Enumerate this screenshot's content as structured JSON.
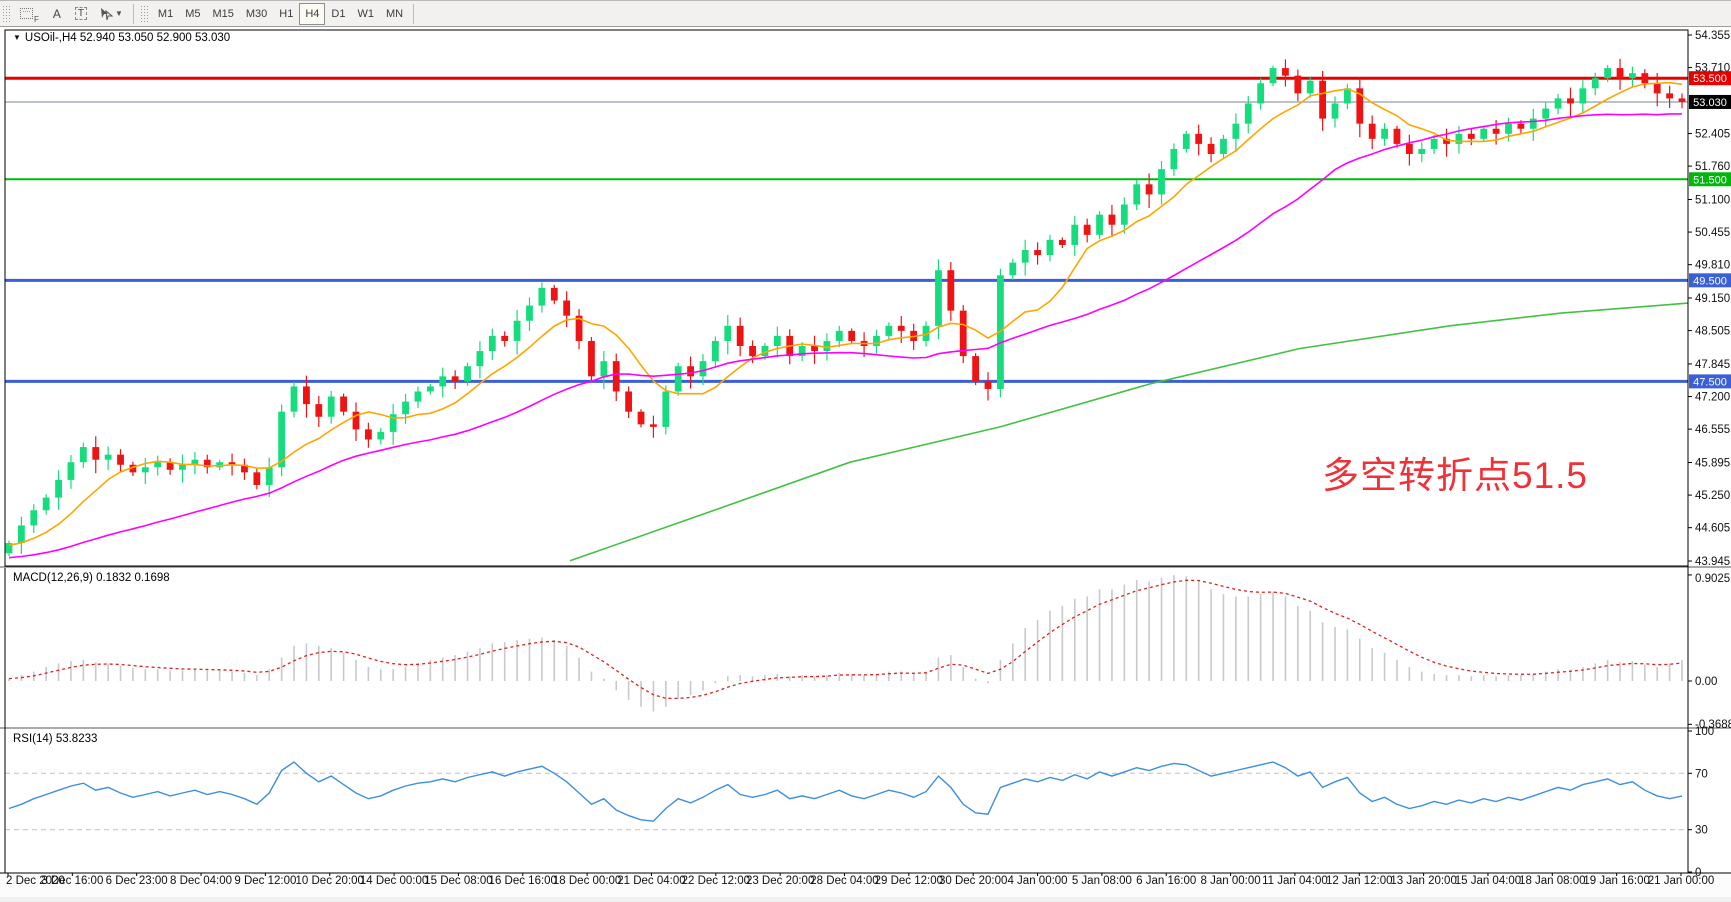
{
  "toolbar": {
    "grid_icon_label": "F",
    "text_icon_label": "A",
    "textbox_icon_label": "T",
    "dropdown_caret": "▼",
    "timeframes": [
      {
        "label": "M1",
        "active": false
      },
      {
        "label": "M5",
        "active": false
      },
      {
        "label": "M15",
        "active": false
      },
      {
        "label": "M30",
        "active": false
      },
      {
        "label": "H1",
        "active": false
      },
      {
        "label": "H4",
        "active": true
      },
      {
        "label": "D1",
        "active": false
      },
      {
        "label": "W1",
        "active": false
      },
      {
        "label": "MN",
        "active": false
      }
    ]
  },
  "symbol_bar": {
    "collapse_glyph": "▼",
    "text": "USOil-,H4 52.940 53.050 52.900 53.030"
  },
  "annotation": {
    "text": "多空转折点51.5",
    "color": "#F03137"
  },
  "macd_panel": {
    "label": "MACD(12,26,9) 0.1832 0.1698",
    "scale": [
      "0.9025",
      "0.00",
      "-0.3688"
    ]
  },
  "rsi_panel": {
    "label": "RSI(14) 53.8233",
    "scale": [
      "100",
      "70",
      "30",
      "0"
    ]
  },
  "colors": {
    "candle_up": "#17DC7E",
    "candle_down": "#EE1414",
    "ma_fast": "#FFA500",
    "ma_slow": "#FF00FF",
    "ma_long": "#43C143",
    "macd_hist": "#C9C9C9",
    "macd_signal": "#E02020",
    "rsi_line": "#3E8EDE",
    "level_red": "#E60000",
    "level_green": "#00B80C",
    "level_blue": "#3A5FD6",
    "current_line": "#7A8696",
    "current_badge": "#000000"
  },
  "price_axis": {
    "ticks": [
      "54.355",
      "53.710",
      "52.405",
      "51.760",
      "51.100",
      "50.455",
      "49.810",
      "49.150",
      "48.505",
      "47.845",
      "47.200",
      "46.555",
      "45.895",
      "45.250",
      "44.605",
      "43.945"
    ]
  },
  "time_axis": {
    "labels": [
      "2 Dec 2020",
      "3 Dec 16:00",
      "6 Dec 23:00",
      "8 Dec 04:00",
      "9 Dec 12:00",
      "10 Dec 20:00",
      "14 Dec 00:00",
      "15 Dec 08:00",
      "16 Dec 16:00",
      "18 Dec 00:00",
      "21 Dec 04:00",
      "22 Dec 12:00",
      "23 Dec 20:00",
      "28 Dec 04:00",
      "29 Dec 12:00",
      "30 Dec 20:00",
      "4 Jan 00:00",
      "5 Jan 08:00",
      "6 Jan 16:00",
      "8 Jan 00:00",
      "11 Jan 04:00",
      "12 Jan 12:00",
      "13 Jan 20:00",
      "15 Jan 04:00",
      "18 Jan 08:00",
      "19 Jan 16:00",
      "21 Jan 00:00"
    ]
  },
  "chart_data": {
    "type": "candlestick",
    "title": "USOil-,H4",
    "ohlc_current": {
      "open": 52.94,
      "high": 53.05,
      "low": 52.9,
      "close": 53.03
    },
    "price_range": [
      43.945,
      54.355
    ],
    "levels": [
      {
        "label": "53.500",
        "price": 53.5,
        "color": "#E60000",
        "width": 3,
        "badge": "#E60000"
      },
      {
        "label": "53.030",
        "price": 53.03,
        "color": "#7A8696",
        "width": 1,
        "badge": "#000000"
      },
      {
        "label": "51.500",
        "price": 51.5,
        "color": "#00B80C",
        "width": 2,
        "badge": "#00B80C"
      },
      {
        "label": "49.500",
        "price": 49.5,
        "color": "#3A5FD6",
        "width": 3,
        "badge": "#3A5FD6"
      },
      {
        "label": "47.500",
        "price": 47.5,
        "color": "#3A5FD6",
        "width": 3,
        "badge": "#3A5FD6"
      }
    ],
    "closes": [
      44.3,
      44.65,
      44.95,
      45.2,
      45.55,
      45.9,
      46.2,
      45.95,
      46.05,
      45.85,
      45.7,
      45.8,
      45.9,
      45.75,
      45.85,
      45.95,
      45.8,
      45.9,
      45.85,
      45.7,
      45.45,
      45.8,
      46.9,
      47.4,
      47.05,
      46.8,
      47.2,
      46.9,
      46.55,
      46.35,
      46.5,
      46.85,
      47.1,
      47.3,
      47.4,
      47.6,
      47.5,
      47.8,
      48.1,
      48.4,
      48.3,
      48.7,
      49.0,
      49.35,
      49.1,
      48.8,
      48.3,
      47.6,
      47.9,
      47.3,
      46.9,
      46.65,
      46.6,
      47.3,
      47.8,
      47.6,
      47.9,
      48.3,
      48.6,
      48.2,
      48.0,
      48.2,
      48.4,
      48.0,
      48.2,
      48.1,
      48.3,
      48.5,
      48.3,
      48.2,
      48.4,
      48.6,
      48.5,
      48.3,
      48.6,
      49.7,
      48.9,
      48.0,
      47.5,
      47.35,
      49.6,
      49.85,
      50.1,
      50.0,
      50.3,
      50.2,
      50.6,
      50.4,
      50.8,
      50.6,
      51.0,
      51.4,
      51.2,
      51.7,
      52.1,
      52.4,
      52.2,
      52.0,
      52.3,
      52.6,
      53.0,
      53.4,
      53.7,
      53.55,
      53.2,
      53.45,
      52.7,
      53.0,
      53.3,
      52.6,
      52.3,
      52.5,
      52.2,
      52.0,
      52.1,
      52.3,
      52.2,
      52.4,
      52.3,
      52.5,
      52.4,
      52.6,
      52.5,
      52.7,
      52.9,
      53.1,
      53.0,
      53.3,
      53.5,
      53.7,
      53.5,
      53.6,
      53.4,
      53.2,
      53.1,
      53.03
    ],
    "ma_long_path": [
      [
        570,
        43.95
      ],
      [
        700,
        44.85
      ],
      [
        850,
        45.9
      ],
      [
        1000,
        46.6
      ],
      [
        1150,
        47.45
      ],
      [
        1300,
        48.15
      ],
      [
        1450,
        48.6
      ],
      [
        1560,
        48.85
      ],
      [
        1688,
        49.05
      ]
    ],
    "macd": {
      "range": [
        -0.3688,
        0.9025
      ],
      "values": [
        0.02,
        0.05,
        0.08,
        0.12,
        0.15,
        0.17,
        0.18,
        0.16,
        0.15,
        0.13,
        0.11,
        0.1,
        0.1,
        0.09,
        0.09,
        0.1,
        0.09,
        0.09,
        0.08,
        0.07,
        0.05,
        0.1,
        0.2,
        0.3,
        0.32,
        0.3,
        0.28,
        0.24,
        0.18,
        0.12,
        0.1,
        0.1,
        0.12,
        0.15,
        0.18,
        0.2,
        0.22,
        0.25,
        0.28,
        0.32,
        0.33,
        0.35,
        0.36,
        0.37,
        0.35,
        0.3,
        0.2,
        0.08,
        0.02,
        -0.08,
        -0.16,
        -0.22,
        -0.26,
        -0.22,
        -0.15,
        -0.12,
        -0.08,
        -0.02,
        0.04,
        0.05,
        0.04,
        0.05,
        0.06,
        0.04,
        0.05,
        0.04,
        0.05,
        0.07,
        0.06,
        0.05,
        0.06,
        0.08,
        0.08,
        0.06,
        0.08,
        0.2,
        0.22,
        0.12,
        0.02,
        -0.02,
        0.18,
        0.32,
        0.45,
        0.52,
        0.6,
        0.64,
        0.7,
        0.72,
        0.78,
        0.78,
        0.82,
        0.86,
        0.85,
        0.88,
        0.9,
        0.89,
        0.85,
        0.78,
        0.74,
        0.72,
        0.72,
        0.74,
        0.76,
        0.72,
        0.64,
        0.6,
        0.5,
        0.46,
        0.44,
        0.36,
        0.28,
        0.24,
        0.18,
        0.12,
        0.08,
        0.06,
        0.05,
        0.05,
        0.04,
        0.05,
        0.04,
        0.05,
        0.05,
        0.06,
        0.08,
        0.1,
        0.1,
        0.12,
        0.15,
        0.18,
        0.16,
        0.17,
        0.14,
        0.12,
        0.15,
        0.18
      ]
    },
    "rsi": {
      "range": [
        0,
        100
      ],
      "overbought": 70,
      "oversold": 30,
      "values": [
        45,
        48,
        52,
        55,
        58,
        61,
        63,
        58,
        60,
        56,
        53,
        55,
        57,
        54,
        56,
        58,
        55,
        57,
        55,
        52,
        48,
        56,
        72,
        78,
        70,
        64,
        68,
        62,
        56,
        52,
        54,
        58,
        61,
        63,
        64,
        66,
        64,
        67,
        69,
        71,
        68,
        71,
        73,
        75,
        70,
        64,
        56,
        48,
        52,
        44,
        40,
        37,
        36,
        45,
        52,
        49,
        53,
        58,
        62,
        55,
        53,
        55,
        58,
        52,
        54,
        52,
        55,
        58,
        54,
        52,
        55,
        58,
        56,
        53,
        57,
        68,
        60,
        48,
        42,
        41,
        60,
        63,
        66,
        64,
        67,
        65,
        69,
        66,
        71,
        68,
        71,
        74,
        72,
        75,
        77,
        76,
        72,
        68,
        70,
        72,
        74,
        76,
        78,
        74,
        68,
        71,
        60,
        64,
        67,
        56,
        50,
        53,
        48,
        45,
        47,
        50,
        48,
        51,
        49,
        52,
        50,
        53,
        51,
        54,
        57,
        60,
        58,
        62,
        64,
        66,
        62,
        64,
        58,
        54,
        52,
        53.8
      ]
    }
  }
}
